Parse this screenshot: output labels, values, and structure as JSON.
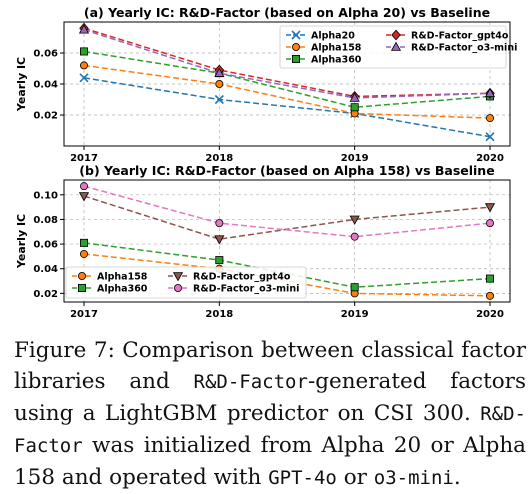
{
  "colors": {
    "Alpha20": "#1f77b4",
    "Alpha158": "#ff7f0e",
    "Alpha360": "#2ca02c",
    "R&D-Factor_gpt4o": "#d62728",
    "R&D-Factor_o3-mini": "#9467bd",
    "R&D-Factor_gpt4o_b": "#8c564b",
    "R&D-Factor_o3-mini_b": "#e377c2"
  },
  "chart_data": [
    {
      "type": "line",
      "title": "(a) Yearly IC: R&D-Factor (based on Alpha 20) vs Baseline",
      "xlabel": "",
      "ylabel": "Yearly IC",
      "categories": [
        "2017",
        "2018",
        "2019",
        "2020"
      ],
      "ylim": [
        0.0,
        0.08
      ],
      "yticks": [
        0.02,
        0.04,
        0.06
      ],
      "ytick_labels": [
        "0.02",
        "0.04",
        "0.06"
      ],
      "grid": true,
      "legend": "top-right",
      "series": [
        {
          "name": "Alpha20",
          "values": [
            0.044,
            0.03,
            0.021,
            0.006
          ],
          "color": "#1f77b4",
          "marker": "x"
        },
        {
          "name": "Alpha158",
          "values": [
            0.052,
            0.04,
            0.021,
            0.018
          ],
          "color": "#ff7f0e",
          "marker": "o"
        },
        {
          "name": "Alpha360",
          "values": [
            0.061,
            0.047,
            0.025,
            0.032
          ],
          "color": "#2ca02c",
          "marker": "s"
        },
        {
          "name": "R&D-Factor_gpt4o",
          "values": [
            0.076,
            0.049,
            0.032,
            0.034
          ],
          "color": "#d62728",
          "marker": "D"
        },
        {
          "name": "R&D-Factor_o3-mini",
          "values": [
            0.075,
            0.047,
            0.031,
            0.034
          ],
          "color": "#9467bd",
          "marker": "^"
        }
      ]
    },
    {
      "type": "line",
      "title": "(b) Yearly IC: R&D-Factor (based on Alpha 158) vs Baseline",
      "xlabel": "",
      "ylabel": "Yearly IC",
      "categories": [
        "2017",
        "2018",
        "2019",
        "2020"
      ],
      "ylim": [
        0.013,
        0.112
      ],
      "yticks": [
        0.02,
        0.04,
        0.06,
        0.08,
        0.1
      ],
      "ytick_labels": [
        "0.02",
        "0.04",
        "0.06",
        "0.08",
        "0.10"
      ],
      "grid": true,
      "legend": "bottom-left",
      "series": [
        {
          "name": "Alpha158",
          "values": [
            0.052,
            0.04,
            0.02,
            0.018
          ],
          "color": "#ff7f0e",
          "marker": "o"
        },
        {
          "name": "Alpha360",
          "values": [
            0.061,
            0.047,
            0.025,
            0.032
          ],
          "color": "#2ca02c",
          "marker": "s"
        },
        {
          "name": "R&D-Factor_gpt4o",
          "values": [
            0.099,
            0.064,
            0.08,
            0.09
          ],
          "color": "#8c564b",
          "marker": "v"
        },
        {
          "name": "R&D-Factor_o3-mini",
          "values": [
            0.107,
            0.077,
            0.066,
            0.077
          ],
          "color": "#e377c2",
          "marker": "o"
        }
      ]
    }
  ],
  "caption": {
    "p1": "Figure 7: Comparison between classical factor libraries and ",
    "m1": "R&D-Factor",
    "p2": "-generated factors using a LightGBM predictor on CSI 300. ",
    "m2": "R&D-Factor",
    "p3": " was initialized from Alpha 20 or Alpha 158 and operated with ",
    "m3": "GPT-4o",
    "p4": " or ",
    "m4": "o3-mini",
    "p5": "."
  }
}
